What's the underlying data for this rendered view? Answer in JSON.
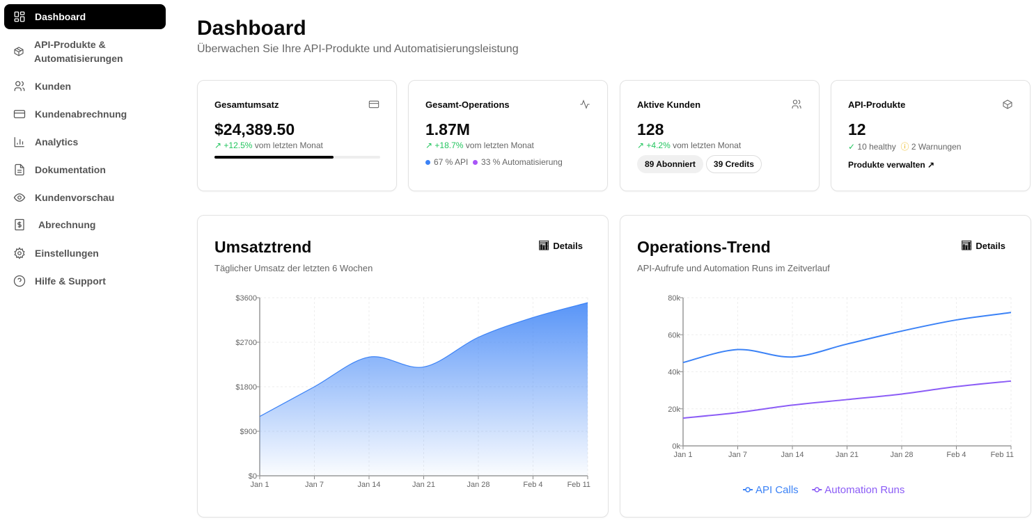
{
  "sidebar": {
    "items": [
      {
        "label": "Dashboard",
        "icon": "layout-grid-icon",
        "active": true
      },
      {
        "label": "API-Produkte & Automatisierungen",
        "icon": "package-icon"
      },
      {
        "label": "Kunden",
        "icon": "users-icon"
      },
      {
        "label": "Kundenabrechnung",
        "icon": "credit-card-icon"
      },
      {
        "label": "Analytics",
        "icon": "bar-chart-icon"
      },
      {
        "label": "Dokumentation",
        "icon": "file-text-icon"
      },
      {
        "label": "Kundenvorschau",
        "icon": "eye-icon"
      },
      {
        "label": "Abrechnung",
        "icon": "receipt-dollar-icon"
      },
      {
        "label": "Einstellungen",
        "icon": "gear-icon"
      },
      {
        "label": "Hilfe & Support",
        "icon": "help-circle-icon"
      }
    ]
  },
  "header": {
    "title": "Dashboard",
    "subtitle": "Überwachen Sie Ihre API-Produkte und Automatisierungsleistung"
  },
  "stats": {
    "revenue": {
      "title": "Gesamtumsatz",
      "value": "$24,389.50",
      "change": "+12.5%",
      "change_suffix": "vom letzten Monat",
      "progress_percent": 72
    },
    "operations": {
      "title": "Gesamt-Operations",
      "value": "1.87M",
      "change": "+18.7%",
      "change_suffix": "vom letzten Monat",
      "api": "67 % API",
      "automation": "33 % Automatisierung"
    },
    "customers": {
      "title": "Aktive Kunden",
      "value": "128",
      "change": "+4.2%",
      "change_suffix": "vom letzten Monat",
      "subscribed": "89 Abonniert",
      "credits": "39 Credits"
    },
    "products": {
      "title": "API-Produkte",
      "value": "12",
      "healthy": "10 healthy",
      "warnings": "2 Warnungen",
      "manage": "Produkte verwalten"
    }
  },
  "colors": {
    "green": "#22c55e",
    "blue": "#3b82f6",
    "purple": "#8b5cf6",
    "warning": "#eab308"
  },
  "chart_data": [
    {
      "type": "area",
      "title": "Umsatztrend",
      "subtitle": "Täglicher Umsatz der letzten 6 Wochen",
      "details_label": "Details",
      "categories": [
        "Jan 1",
        "Jan 7",
        "Jan 14",
        "Jan 21",
        "Jan 28",
        "Feb 4",
        "Feb 11"
      ],
      "values": [
        1200,
        1800,
        2400,
        2200,
        2800,
        3200,
        3500
      ],
      "ylim": [
        0,
        3600
      ],
      "yticks": [
        "$0",
        "$900",
        "$1800",
        "$2700",
        "$3600"
      ],
      "grid": true
    },
    {
      "type": "line",
      "title": "Operations-Trend",
      "subtitle": "API-Aufrufe und Automation Runs im Zeitverlauf",
      "details_label": "Details",
      "categories": [
        "Jan 1",
        "Jan 7",
        "Jan 14",
        "Jan 21",
        "Jan 28",
        "Feb 4",
        "Feb 11"
      ],
      "series": [
        {
          "name": "API Calls",
          "values": [
            45000,
            52000,
            48000,
            55000,
            62000,
            68000,
            72000
          ]
        },
        {
          "name": "Automation Runs",
          "values": [
            15000,
            18000,
            22000,
            25000,
            28000,
            32000,
            35000
          ]
        }
      ],
      "ylim": [
        0,
        80000
      ],
      "yticks": [
        "0k",
        "20k",
        "40k",
        "60k",
        "80k"
      ],
      "grid": true,
      "legend": "bottom"
    }
  ]
}
